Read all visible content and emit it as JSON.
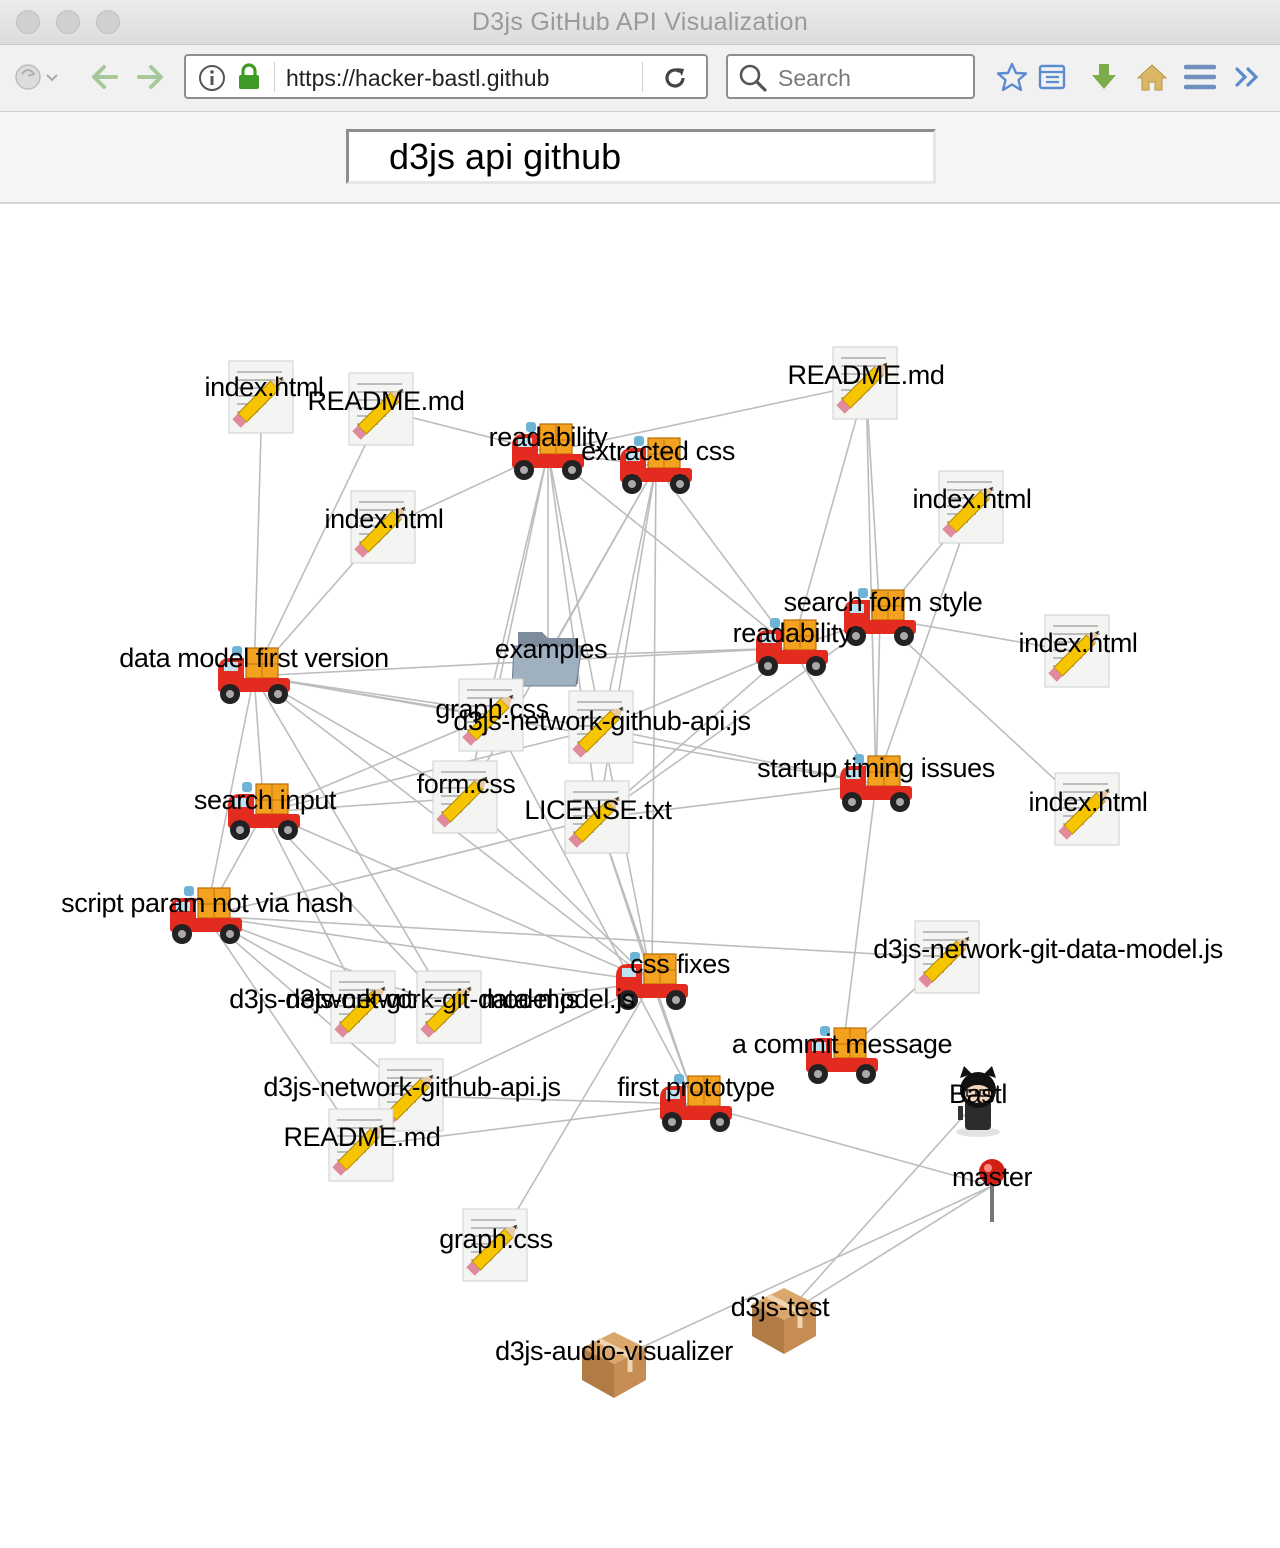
{
  "window": {
    "title": "D3js GitHub API Visualization"
  },
  "toolbar": {
    "url": "https://hacker-bastl.github",
    "search_placeholder": "Search"
  },
  "page": {
    "search_query": "d3js api github"
  },
  "graph": {
    "nodes": [
      {
        "id": "f1",
        "label": "index.html",
        "kind": "file"
      },
      {
        "id": "f2",
        "label": "README.md",
        "kind": "file"
      },
      {
        "id": "f3",
        "label": "README.md",
        "kind": "file"
      },
      {
        "id": "c1",
        "label": "readability",
        "kind": "commit"
      },
      {
        "id": "c2",
        "label": "extracted css",
        "kind": "commit"
      },
      {
        "id": "f4",
        "label": "index.html",
        "kind": "file"
      },
      {
        "id": "f5",
        "label": "index.html",
        "kind": "file"
      },
      {
        "id": "c3",
        "label": "search form style",
        "kind": "commit"
      },
      {
        "id": "c4",
        "label": "readability",
        "kind": "commit"
      },
      {
        "id": "f6",
        "label": "index.html",
        "kind": "file"
      },
      {
        "id": "c5",
        "label": "data model first version",
        "kind": "commit"
      },
      {
        "id": "d1",
        "label": "examples",
        "kind": "folder"
      },
      {
        "id": "f7",
        "label": "graph.css",
        "kind": "file"
      },
      {
        "id": "f8",
        "label": "d3js-network-github-api.js",
        "kind": "file"
      },
      {
        "id": "c6",
        "label": "startup timing issues",
        "kind": "commit"
      },
      {
        "id": "c7",
        "label": "search input",
        "kind": "commit"
      },
      {
        "id": "f9",
        "label": "form.css",
        "kind": "file"
      },
      {
        "id": "f10",
        "label": "LICENSE.txt",
        "kind": "file"
      },
      {
        "id": "f11",
        "label": "index.html",
        "kind": "file"
      },
      {
        "id": "c8",
        "label": "script param not via hash",
        "kind": "commit"
      },
      {
        "id": "c9",
        "label": "css fixes",
        "kind": "commit"
      },
      {
        "id": "f12",
        "label": "d3js-network-git-data-model.js",
        "kind": "file"
      },
      {
        "id": "f13",
        "label": "d3js-network-git-data-model.js",
        "kind": "file"
      },
      {
        "id": "f14",
        "label": "d3js-network-git-data-model.js",
        "kind": "file"
      },
      {
        "id": "c10",
        "label": "a commit message",
        "kind": "commit"
      },
      {
        "id": "u1",
        "label": "Bastl",
        "kind": "user"
      },
      {
        "id": "f15",
        "label": "d3js-network-github-api.js",
        "kind": "file"
      },
      {
        "id": "c11",
        "label": "first prototype",
        "kind": "commit"
      },
      {
        "id": "f16",
        "label": "README.md",
        "kind": "file"
      },
      {
        "id": "b1",
        "label": "master",
        "kind": "branch"
      },
      {
        "id": "f17",
        "label": "graph.css",
        "kind": "file"
      },
      {
        "id": "r1",
        "label": "d3js-test",
        "kind": "repo"
      },
      {
        "id": "r2",
        "label": "d3js-audio-visualizer",
        "kind": "repo"
      }
    ],
    "links": [
      [
        "f1",
        "c5"
      ],
      [
        "f2",
        "c5"
      ],
      [
        "f2",
        "c1"
      ],
      [
        "f3",
        "c1"
      ],
      [
        "f3",
        "c4"
      ],
      [
        "f3",
        "c3"
      ],
      [
        "f3",
        "c6"
      ],
      [
        "f4",
        "c5"
      ],
      [
        "f4",
        "c1"
      ],
      [
        "f5",
        "c3"
      ],
      [
        "f5",
        "c6"
      ],
      [
        "f6",
        "c3"
      ],
      [
        "f11",
        "c3"
      ],
      [
        "c1",
        "c2"
      ],
      [
        "c1",
        "d1"
      ],
      [
        "c1",
        "f7"
      ],
      [
        "c1",
        "f8"
      ],
      [
        "c1",
        "f9"
      ],
      [
        "c1",
        "f10"
      ],
      [
        "c1",
        "c4"
      ],
      [
        "c2",
        "d1"
      ],
      [
        "c2",
        "f8"
      ],
      [
        "c2",
        "f9"
      ],
      [
        "c2",
        "f10"
      ],
      [
        "c2",
        "c4"
      ],
      [
        "c2",
        "c9"
      ],
      [
        "c4",
        "d1"
      ],
      [
        "c4",
        "f8"
      ],
      [
        "c4",
        "c3"
      ],
      [
        "c4",
        "c6"
      ],
      [
        "c4",
        "f10"
      ],
      [
        "c4",
        "c5"
      ],
      [
        "c3",
        "c6"
      ],
      [
        "c3",
        "f10"
      ],
      [
        "c5",
        "f7"
      ],
      [
        "c5",
        "f8"
      ],
      [
        "c5",
        "f9"
      ],
      [
        "c5",
        "c7"
      ],
      [
        "c5",
        "c8"
      ],
      [
        "c5",
        "f13"
      ],
      [
        "c5",
        "c9"
      ],
      [
        "c5",
        "c6"
      ],
      [
        "c7",
        "f7"
      ],
      [
        "c7",
        "f9"
      ],
      [
        "c7",
        "f8"
      ],
      [
        "c7",
        "c8"
      ],
      [
        "c7",
        "f12"
      ],
      [
        "c7",
        "f13"
      ],
      [
        "c7",
        "c9"
      ],
      [
        "c8",
        "f12"
      ],
      [
        "c8",
        "f13"
      ],
      [
        "c8",
        "f14"
      ],
      [
        "c8",
        "c9"
      ],
      [
        "c8",
        "f15"
      ],
      [
        "c8",
        "f16"
      ],
      [
        "c8",
        "f10"
      ],
      [
        "c9",
        "f8"
      ],
      [
        "c9",
        "f10"
      ],
      [
        "c9",
        "f9"
      ],
      [
        "c9",
        "f15"
      ],
      [
        "c9",
        "c11"
      ],
      [
        "c9",
        "f17"
      ],
      [
        "c9",
        "f13"
      ],
      [
        "c6",
        "f8"
      ],
      [
        "c6",
        "f10"
      ],
      [
        "c6",
        "c10"
      ],
      [
        "c10",
        "f14"
      ],
      [
        "c11",
        "f16"
      ],
      [
        "c11",
        "f15"
      ],
      [
        "c11",
        "b1"
      ],
      [
        "c11",
        "f10"
      ],
      [
        "c11",
        "f7"
      ],
      [
        "b1",
        "r1"
      ],
      [
        "b1",
        "r2"
      ],
      [
        "u1",
        "r1"
      ]
    ]
  }
}
